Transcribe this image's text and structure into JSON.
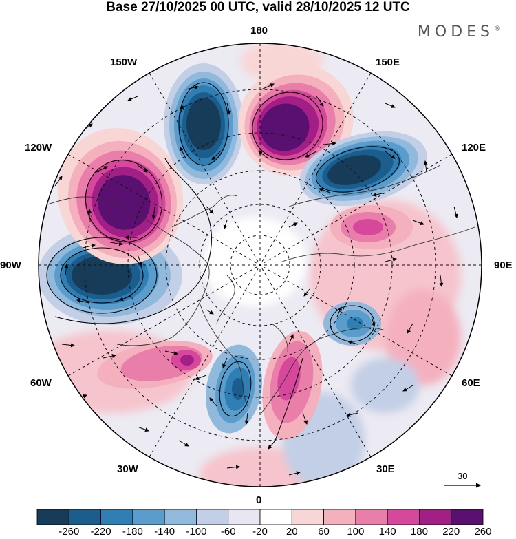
{
  "header": {
    "title": "Base 27/10/2025 00 UTC, valid 28/10/2025 12 UTC",
    "brand": "MODES",
    "brand_mark": "®"
  },
  "map": {
    "projection": "north polar stereographic",
    "longitude_labels": {
      "top": "180",
      "top_right": "150E",
      "right_upper": "120E",
      "right": "90E",
      "right_lower": "60E",
      "bottom_right": "30E",
      "bottom": "0",
      "bottom_left": "30W",
      "left_lower": "60W",
      "left": "90W",
      "left_upper": "120W",
      "top_left": "150W"
    },
    "vector_reference": {
      "label": "30",
      "unit_arrow": "reference wind vector"
    }
  },
  "colorbar": {
    "tick_labels": [
      "-260",
      "-220",
      "-180",
      "-140",
      "-100",
      "-60",
      "-20",
      "20",
      "60",
      "100",
      "140",
      "180",
      "220",
      "260"
    ],
    "colors": [
      "#173c5a",
      "#1b5d8c",
      "#2f7fb5",
      "#5a9ccc",
      "#90b9dc",
      "#c2cfe6",
      "#e8e6f2",
      "#ffffff",
      "#f9d6d6",
      "#f4b0bd",
      "#ea7eaa",
      "#d7489d",
      "#a21f86",
      "#5a1070"
    ]
  },
  "features": {
    "anomaly_centers": [
      {
        "sign": "negative",
        "strength": "strong",
        "name": "pacific-north-low"
      },
      {
        "sign": "positive",
        "strength": "strong",
        "name": "siberia-east-high"
      },
      {
        "sign": "negative",
        "strength": "strong",
        "name": "east-siberia-low"
      },
      {
        "sign": "positive",
        "strength": "strong",
        "name": "alaska-high"
      },
      {
        "sign": "negative",
        "strength": "strong",
        "name": "canada-low"
      },
      {
        "sign": "positive",
        "strength": "moderate",
        "name": "atlantic-west-high"
      },
      {
        "sign": "positive",
        "strength": "moderate",
        "name": "central-asia-high"
      },
      {
        "sign": "negative",
        "strength": "moderate",
        "name": "atlantic-low"
      },
      {
        "sign": "positive",
        "strength": "moderate",
        "name": "europe-high"
      },
      {
        "sign": "negative",
        "strength": "weak",
        "name": "scandinavia-low"
      }
    ]
  }
}
